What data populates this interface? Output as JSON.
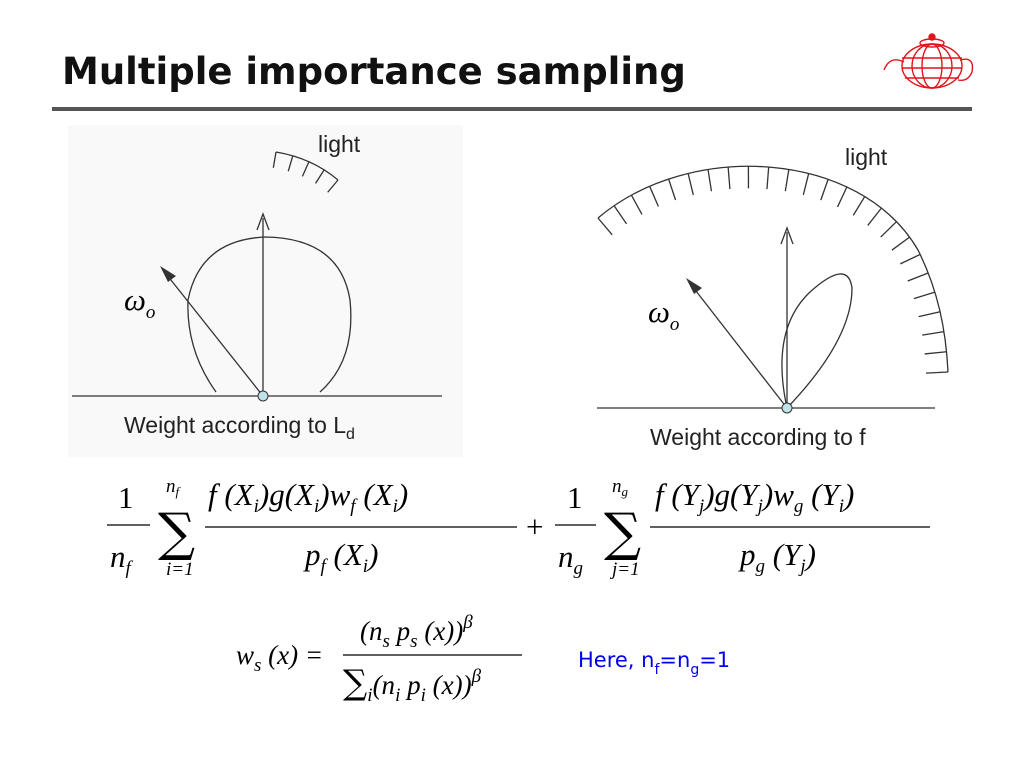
{
  "header": {
    "title": "Multiple importance sampling"
  },
  "diagram_left": {
    "light": "light",
    "omega": "ω",
    "omega_sub": "o",
    "caption": "Weight according to L",
    "caption_sub": "d"
  },
  "diagram_right": {
    "light": "light",
    "omega": "ω",
    "omega_sub": "o",
    "caption": "Weight according to f"
  },
  "formula_1": {
    "term_1": {
      "coefficient": {
        "numerator": "1",
        "denominator": "n",
        "denominator_sub": "f"
      },
      "sum": {
        "symbol": "∑",
        "upper": "n",
        "upper_sub": "f",
        "lower": "i=1"
      },
      "numerator": [
        "f (X",
        "i",
        ")g(X",
        "i",
        ")w",
        "f",
        " (X",
        "i",
        ")"
      ],
      "denominator": [
        "p",
        "f",
        " (X",
        "i",
        ")"
      ]
    },
    "operator": "+",
    "term_2": {
      "coefficient": {
        "numerator": "1",
        "denominator": "n",
        "denominator_sub": "g"
      },
      "sum": {
        "symbol": "∑",
        "upper": "n",
        "upper_sub": "g",
        "lower": "j=1"
      },
      "numerator": [
        "f (Y",
        "j",
        ")g(Y",
        "j",
        ")w",
        "g",
        " (Y",
        "i",
        ")"
      ],
      "denominator": [
        "p",
        "g",
        " (Y",
        "j",
        ")"
      ]
    }
  },
  "formula_2": {
    "lhs": [
      "w",
      "s",
      " (x) ="
    ],
    "numerator": [
      "(n",
      "s",
      " p",
      "s",
      " (x))",
      "β"
    ],
    "denominator": [
      "∑",
      "i",
      "(n",
      "i",
      " p",
      "i",
      " (x))",
      "β"
    ]
  },
  "note": [
    "Here, n",
    "f",
    "=n",
    "g",
    "=1"
  ]
}
